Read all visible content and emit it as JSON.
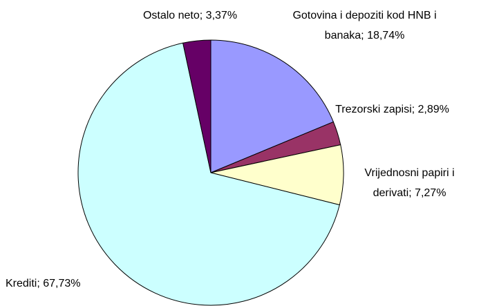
{
  "chart_data": {
    "type": "pie",
    "categories": [
      "Gotovina i depoziti kod HNB i banaka;",
      "Trezorski zapisi;",
      "Vrijednosni papiri i derivati;",
      "Krediti;",
      "Ostalo neto;"
    ],
    "values": [
      18.74,
      2.89,
      7.27,
      67.73,
      3.37
    ],
    "value_labels": [
      "18,74%",
      "2,89%",
      "7,27%",
      "67,73%",
      "3,37%"
    ],
    "colors": [
      "#9999ff",
      "#993366",
      "#ffffcc",
      "#ccffff",
      "#660066"
    ]
  }
}
